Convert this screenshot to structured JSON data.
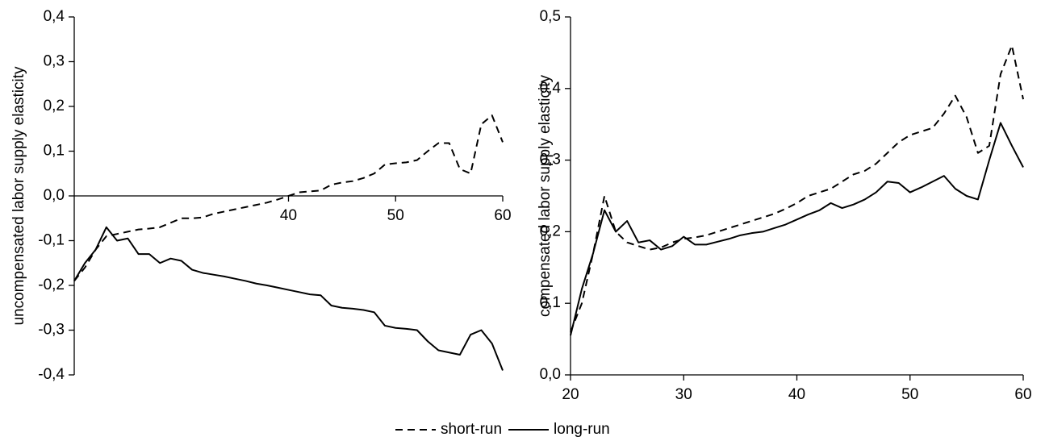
{
  "chart_data": [
    {
      "type": "line",
      "ylabel": "uncompensated labor supply elasticity",
      "x": [
        20,
        21,
        22,
        23,
        24,
        25,
        26,
        27,
        28,
        29,
        30,
        31,
        32,
        33,
        34,
        35,
        36,
        37,
        38,
        39,
        40,
        41,
        42,
        43,
        44,
        45,
        46,
        47,
        48,
        49,
        50,
        51,
        52,
        53,
        54,
        55,
        56,
        57,
        58,
        59,
        60
      ],
      "series": [
        {
          "name": "short-run",
          "color": "#000000",
          "dash": true,
          "values": [
            -0.19,
            -0.16,
            -0.12,
            -0.09,
            -0.085,
            -0.08,
            -0.075,
            -0.073,
            -0.07,
            -0.06,
            -0.05,
            -0.05,
            -0.048,
            -0.04,
            -0.035,
            -0.03,
            -0.025,
            -0.02,
            -0.015,
            -0.008,
            0.0,
            0.008,
            0.01,
            0.012,
            0.025,
            0.03,
            0.033,
            0.04,
            0.05,
            0.07,
            0.073,
            0.075,
            0.08,
            0.1,
            0.118,
            0.118,
            0.06,
            0.05,
            0.16,
            0.18,
            0.12
          ]
        },
        {
          "name": "long-run",
          "color": "#000000",
          "dash": false,
          "values": [
            -0.19,
            -0.15,
            -0.12,
            -0.07,
            -0.1,
            -0.095,
            -0.13,
            -0.13,
            -0.15,
            -0.14,
            -0.145,
            -0.165,
            -0.172,
            -0.176,
            -0.18,
            -0.185,
            -0.19,
            -0.196,
            -0.2,
            -0.205,
            -0.21,
            -0.215,
            -0.22,
            -0.222,
            -0.245,
            -0.25,
            -0.252,
            -0.255,
            -0.26,
            -0.29,
            -0.295,
            -0.297,
            -0.3,
            -0.325,
            -0.345,
            -0.35,
            -0.355,
            -0.31,
            -0.3,
            -0.33,
            -0.39
          ]
        }
      ],
      "xlim": [
        20,
        60
      ],
      "xticks": [
        40,
        50,
        60
      ],
      "ylim": [
        -0.4,
        0.4
      ],
      "yticks": [
        {
          "value": 0.4,
          "label": "0,4"
        },
        {
          "value": 0.3,
          "label": "0,3"
        },
        {
          "value": 0.2,
          "label": "0,2"
        },
        {
          "value": 0.1,
          "label": "0,1"
        },
        {
          "value": 0,
          "label": "0,0"
        },
        {
          "value": -0.1,
          "label": "-0,1"
        },
        {
          "value": -0.2,
          "label": "-0,2"
        },
        {
          "value": -0.3,
          "label": "-0,3"
        },
        {
          "value": -0.4,
          "label": "-0,4"
        }
      ]
    },
    {
      "type": "line",
      "ylabel": "compensated labor supply elasticity",
      "x": [
        20,
        21,
        22,
        23,
        24,
        25,
        26,
        27,
        28,
        29,
        30,
        31,
        32,
        33,
        34,
        35,
        36,
        37,
        38,
        39,
        40,
        41,
        42,
        43,
        44,
        45,
        46,
        47,
        48,
        49,
        50,
        51,
        52,
        53,
        54,
        55,
        56,
        57,
        58,
        59,
        60
      ],
      "series": [
        {
          "color": "#000000",
          "dash": true,
          "values": [
            0.06,
            0.1,
            0.17,
            0.25,
            0.2,
            0.185,
            0.18,
            0.175,
            0.178,
            0.185,
            0.19,
            0.192,
            0.195,
            0.2,
            0.205,
            0.21,
            0.215,
            0.22,
            0.225,
            0.232,
            0.24,
            0.25,
            0.255,
            0.26,
            0.27,
            0.28,
            0.285,
            0.295,
            0.31,
            0.325,
            0.335,
            0.34,
            0.345,
            0.365,
            0.39,
            0.36,
            0.31,
            0.32,
            0.42,
            0.46,
            0.385
          ]
        },
        {
          "color": "#000000",
          "dash": false,
          "values": [
            0.055,
            0.12,
            0.17,
            0.23,
            0.2,
            0.215,
            0.185,
            0.188,
            0.175,
            0.18,
            0.193,
            0.182,
            0.182,
            0.186,
            0.19,
            0.195,
            0.198,
            0.2,
            0.205,
            0.21,
            0.217,
            0.224,
            0.23,
            0.24,
            0.233,
            0.238,
            0.245,
            0.255,
            0.27,
            0.268,
            0.255,
            0.262,
            0.27,
            0.278,
            0.26,
            0.25,
            0.245,
            0.3,
            0.352,
            0.32,
            0.29
          ]
        }
      ],
      "xlim": [
        20,
        60
      ],
      "xticks": [
        20,
        30,
        40,
        50,
        60
      ],
      "ylim": [
        0,
        0.5
      ],
      "yticks": [
        {
          "value": 0,
          "label": "0,0"
        },
        {
          "value": 0.1,
          "label": "0,1"
        },
        {
          "value": 0.2,
          "label": "0,2"
        },
        {
          "value": 0.3,
          "label": "0,3"
        },
        {
          "value": 0.4,
          "label": "0,4"
        },
        {
          "value": 0.5,
          "label": "0,5"
        }
      ]
    }
  ]
}
